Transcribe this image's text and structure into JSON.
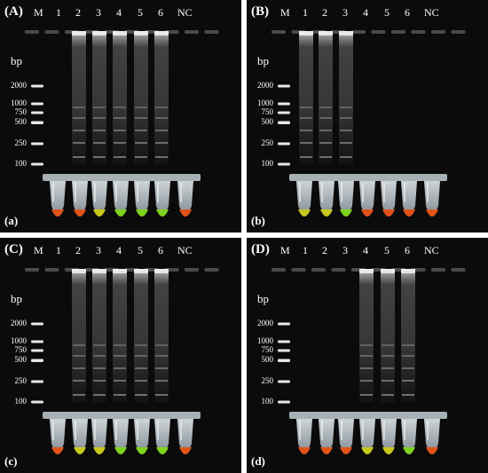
{
  "figure": {
    "lane_labels": [
      "M",
      "1",
      "2",
      "3",
      "4",
      "5",
      "6",
      "NC"
    ],
    "bp_unit": "bp",
    "ladder_sizes": [
      "2000",
      "1000",
      "750",
      "500",
      "250",
      "100"
    ],
    "colors": {
      "background": "#0b0b0b",
      "orange_tube": "#e0541a",
      "yellow_tube": "#c8c81e",
      "green_tube": "#7fd21e"
    },
    "panels": [
      {
        "id": "A",
        "letter": "(A)",
        "sublabel": "(a)",
        "positive_lanes": [
          "2",
          "3",
          "4",
          "5",
          "6"
        ],
        "tube_colors": [
          "orange",
          "orange",
          "yellow",
          "green",
          "green",
          "green",
          "orange"
        ]
      },
      {
        "id": "B",
        "letter": "(B)",
        "sublabel": "(b)",
        "positive_lanes": [
          "1",
          "2",
          "3"
        ],
        "tube_colors": [
          "yellow",
          "yellow",
          "green",
          "orange",
          "orange",
          "orange",
          "orange"
        ]
      },
      {
        "id": "C",
        "letter": "(C)",
        "sublabel": "(c)",
        "positive_lanes": [
          "2",
          "3",
          "4",
          "5",
          "6"
        ],
        "tube_colors": [
          "orange",
          "yellow",
          "yellow",
          "green",
          "green",
          "green",
          "orange"
        ]
      },
      {
        "id": "D",
        "letter": "(D)",
        "sublabel": "(d)",
        "positive_lanes": [
          "4",
          "5",
          "6"
        ],
        "tube_colors": [
          "orange",
          "orange",
          "orange",
          "yellow",
          "yellow",
          "green",
          "orange"
        ]
      }
    ]
  }
}
